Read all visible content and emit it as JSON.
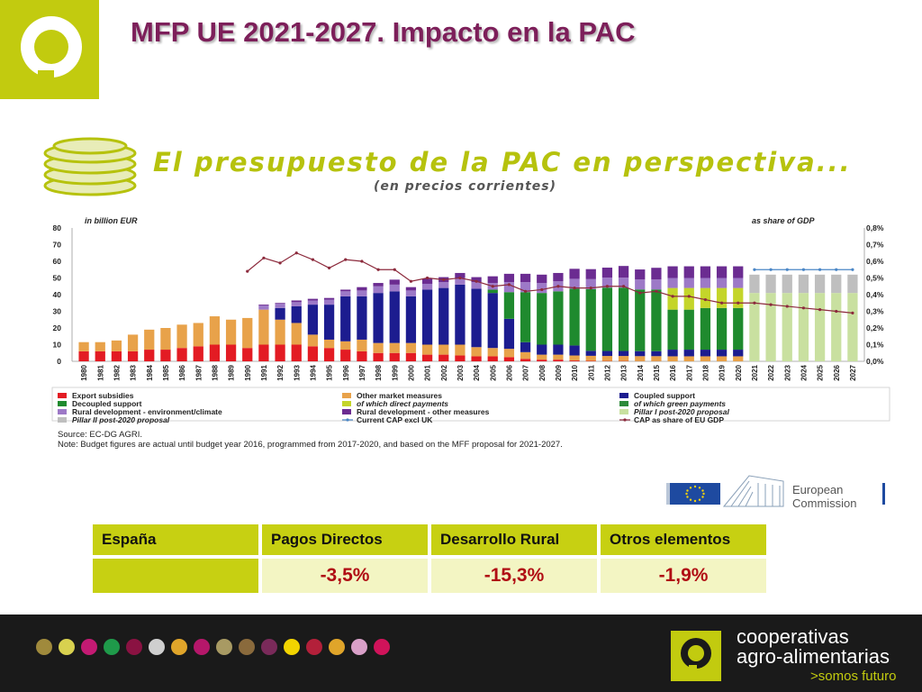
{
  "slide": {
    "title": "MFP UE 2021-2027. Impacto en la PAC",
    "banner_title": "El presupuesto de la PAC en perspectiva...",
    "banner_subtitle": "(en precios corrientes)",
    "logo_icon": "cooperativas-logo-icon",
    "brand_color": "#c2cb0f",
    "title_color": "#7d1f5a"
  },
  "chart_data": {
    "type": "bar",
    "stacked": true,
    "left_axis_label": "in billion EUR",
    "right_axis_label": "as share of  GDP",
    "ylim": [
      0,
      80
    ],
    "yticks": [
      "0",
      "10",
      "20",
      "30",
      "40",
      "50",
      "60",
      "70",
      "80"
    ],
    "y2lim": [
      0,
      0.8
    ],
    "y2ticks": [
      "0,0%",
      "0,1%",
      "0,2%",
      "0,3%",
      "0,4%",
      "0,5%",
      "0,6%",
      "0,7%",
      "0,8%"
    ],
    "grid": false,
    "legend_position": "bottom",
    "categories": [
      "1980",
      "1981",
      "1982",
      "1983",
      "1984",
      "1985",
      "1986",
      "1987",
      "1988",
      "1989",
      "1990",
      "1991",
      "1992",
      "1993",
      "1994",
      "1995",
      "1996",
      "1997",
      "1998",
      "1999",
      "2000",
      "2001",
      "2002",
      "2003",
      "2004",
      "2005",
      "2006",
      "2007",
      "2008",
      "2009",
      "2010",
      "2011",
      "2012",
      "2013",
      "2014",
      "2015",
      "2016",
      "2017",
      "2018",
      "2019",
      "2020",
      "2021",
      "2022",
      "2023",
      "2024",
      "2025",
      "2026",
      "2027"
    ],
    "series": [
      {
        "name": "Export subsidies",
        "color": "#e31b23",
        "values": [
          6,
          6,
          6,
          6,
          7,
          7,
          8,
          9,
          10,
          10,
          8,
          10,
          10,
          10,
          9,
          8,
          7,
          6,
          5,
          5,
          5,
          4,
          4,
          3.5,
          3,
          3,
          2.5,
          1.5,
          1,
          1,
          0.5,
          0.3,
          0.2,
          0.2,
          0.1,
          0.1,
          0,
          0,
          0,
          0,
          0,
          0,
          0,
          0,
          0,
          0,
          0,
          0
        ]
      },
      {
        "name": "Other market measures",
        "color": "#e8a24a",
        "values": [
          5.5,
          5.5,
          6.5,
          10,
          12,
          13,
          14,
          14,
          17,
          15,
          18,
          21,
          15,
          13,
          7,
          5,
          5,
          7,
          6,
          6,
          6,
          6,
          6,
          6.5,
          5.5,
          5,
          5,
          4,
          3,
          3,
          3,
          3,
          3,
          3,
          3,
          3,
          3,
          3,
          3,
          3,
          3,
          0,
          0,
          0,
          0,
          0,
          0,
          0
        ]
      },
      {
        "name": "Coupled support",
        "color": "#1c1c8f",
        "values": [
          0,
          0,
          0,
          0,
          0,
          0,
          0,
          0,
          0,
          0,
          0,
          0,
          7,
          10,
          18,
          21,
          27,
          26,
          30,
          31,
          28,
          33,
          34,
          36,
          35,
          33,
          18,
          6,
          6,
          6,
          6,
          3,
          3,
          3,
          3,
          3,
          4,
          4,
          4,
          4,
          4,
          0,
          0,
          0,
          0,
          0,
          0,
          0
        ]
      },
      {
        "name": "Decoupled support",
        "color": "#1f8a2e",
        "values": [
          0,
          0,
          0,
          0,
          0,
          0,
          0,
          0,
          0,
          0,
          0,
          0,
          0,
          0,
          0,
          0,
          0,
          0,
          0,
          0,
          0,
          0,
          0,
          0,
          0,
          2,
          16,
          30,
          31,
          32,
          34,
          37,
          38,
          38,
          37,
          37,
          24,
          24,
          25,
          25,
          25,
          0,
          0,
          0,
          0,
          0,
          0,
          0
        ]
      },
      {
        "name": "of which direct payments",
        "color": "#c4d52a",
        "values": [
          0,
          0,
          0,
          0,
          0,
          0,
          0,
          0,
          0,
          0,
          0,
          0,
          0,
          0,
          0,
          0,
          0,
          0,
          0,
          0,
          0,
          0,
          0,
          0,
          0,
          0,
          0,
          0,
          0,
          0,
          0,
          0,
          0,
          0,
          0,
          0,
          13,
          13,
          12,
          12,
          12,
          0,
          0,
          0,
          0,
          0,
          0,
          0
        ]
      },
      {
        "name": "Rural development - environment/climate",
        "color": "#9d79c7",
        "values": [
          0,
          0,
          0,
          0,
          0,
          0,
          0,
          0,
          0,
          0,
          0,
          2.5,
          2.5,
          2.5,
          2.5,
          3,
          3,
          3.5,
          4,
          4,
          3.5,
          3.5,
          3.5,
          4,
          4,
          4,
          6,
          6,
          6,
          6,
          6,
          6,
          6,
          6,
          6,
          6,
          6,
          6,
          6,
          6,
          6,
          0,
          0,
          0,
          0,
          0,
          0,
          0
        ]
      },
      {
        "name": "Rural development - other measures",
        "color": "#6b2c91",
        "values": [
          0,
          0,
          0,
          0,
          0,
          0,
          0,
          0,
          0,
          0,
          0,
          0.5,
          0.5,
          1,
          1,
          1,
          1,
          2,
          2,
          3,
          2,
          3,
          3,
          3,
          3,
          4,
          5,
          5,
          5,
          5,
          6,
          6,
          6,
          7,
          6,
          7,
          7,
          7,
          7,
          7,
          7,
          0,
          0,
          0,
          0,
          0,
          0,
          0
        ]
      },
      {
        "name": "Pillar I post-2020 proposal",
        "color": "#c9e0a0",
        "values": [
          0,
          0,
          0,
          0,
          0,
          0,
          0,
          0,
          0,
          0,
          0,
          0,
          0,
          0,
          0,
          0,
          0,
          0,
          0,
          0,
          0,
          0,
          0,
          0,
          0,
          0,
          0,
          0,
          0,
          0,
          0,
          0,
          0,
          0,
          0,
          0,
          0,
          0,
          0,
          0,
          0,
          41,
          41,
          41,
          41,
          41,
          41,
          41
        ]
      },
      {
        "name": "Pillar II post-2020 proposal",
        "color": "#bfbfbf",
        "values": [
          0,
          0,
          0,
          0,
          0,
          0,
          0,
          0,
          0,
          0,
          0,
          0,
          0,
          0,
          0,
          0,
          0,
          0,
          0,
          0,
          0,
          0,
          0,
          0,
          0,
          0,
          0,
          0,
          0,
          0,
          0,
          0,
          0,
          0,
          0,
          0,
          0,
          0,
          0,
          0,
          0,
          11,
          11,
          11,
          11,
          11,
          11,
          11
        ]
      }
    ],
    "legend_only": [
      {
        "name": "of which green payments",
        "color": "#2d8a3a"
      },
      {
        "name": "Current CAP excl UK",
        "color": "#4a86c6",
        "type": "line"
      },
      {
        "name": "CAP as share of EU GDP",
        "color": "#8c2a3c",
        "type": "line"
      }
    ],
    "line_series": [
      {
        "name": "Current CAP excl UK",
        "color": "#4a86c6",
        "axis": "left",
        "x": [
          "2021",
          "2022",
          "2023",
          "2024",
          "2025",
          "2026",
          "2027"
        ],
        "values": [
          55,
          55,
          55,
          55,
          55,
          55,
          55
        ]
      },
      {
        "name": "CAP as share of EU GDP",
        "color": "#8c2a3c",
        "axis": "right",
        "x": [
          "1990",
          "1991",
          "1992",
          "1993",
          "1994",
          "1995",
          "1996",
          "1997",
          "1998",
          "1999",
          "2000",
          "2001",
          "2002",
          "2003",
          "2004",
          "2005",
          "2006",
          "2007",
          "2008",
          "2009",
          "2010",
          "2011",
          "2012",
          "2013",
          "2014",
          "2015",
          "2016",
          "2017",
          "2018",
          "2019",
          "2020",
          "2021",
          "2022",
          "2023",
          "2024",
          "2025",
          "2026",
          "2027"
        ],
        "values": [
          0.54,
          0.62,
          0.59,
          0.65,
          0.61,
          0.56,
          0.61,
          0.6,
          0.55,
          0.55,
          0.48,
          0.5,
          0.49,
          0.5,
          0.48,
          0.45,
          0.46,
          0.42,
          0.43,
          0.45,
          0.44,
          0.44,
          0.45,
          0.45,
          0.41,
          0.42,
          0.39,
          0.39,
          0.37,
          0.35,
          0.35,
          0.35,
          0.34,
          0.33,
          0.32,
          0.31,
          0.3,
          0.29
        ]
      }
    ]
  },
  "source": {
    "line1": "Source: EC-DG AGRI.",
    "line2": "Note: Budget figures are actual until budget year 2016, programmed from 2017-2020, and based on the MFF proposal for 2021-2027."
  },
  "ec_logo": {
    "text": "European\nCommission",
    "icon": "eu-flag-icon"
  },
  "table": {
    "headers": [
      "España",
      "Pagos Directos",
      "Desarrollo Rural",
      "Otros elementos"
    ],
    "values": [
      "",
      "-3,5%",
      "-15,3%",
      "-1,9%"
    ]
  },
  "footer": {
    "brand_line": "cooperativas\nagro-alimentarias",
    "tagline": ">somos futuro",
    "dots": [
      "#a08a3c",
      "#d8d14f",
      "#c41a73",
      "#1f9a4a",
      "#8a1242",
      "#cfcfcf",
      "#e0a52a",
      "#b5176a",
      "#a89a63",
      "#8a6a3c",
      "#7a2a5a",
      "#f2d400",
      "#b3203a",
      "#e0a52a",
      "#d9a0c8",
      "#d0135a"
    ]
  }
}
